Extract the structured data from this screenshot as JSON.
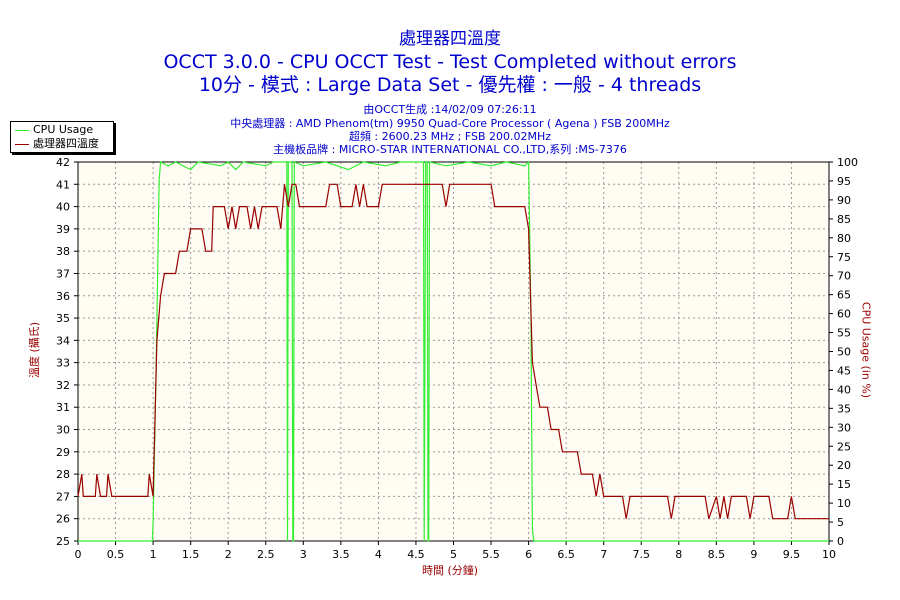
{
  "chart_data": {
    "type": "line",
    "title": "處理器四溫度",
    "subtitle_1": "OCCT 3.0.0 - CPU OCCT Test - Test Completed without errors",
    "subtitle_2": "10分 - 模式 : Large Data Set - 優先權 : 一般 - 4 threads",
    "info_lines": [
      "由OCCT生成 :14/02/09 07:26:11",
      "中央處理器 : AMD Phenom(tm) 9950 Quad-Core Processor ( Agena ) FSB 200MHz",
      "超頻 : 2600.23 MHz ; FSB 200.02MHz",
      "主機板品牌 : MICRO-STAR INTERNATIONAL CO.,LTD,系列 :MS-7376"
    ],
    "xlabel": "時間 (分鐘)",
    "ylabel_left": "溫度 (攝氏)",
    "ylabel_right": "CPU Usage (in %)",
    "xlim": [
      0,
      10
    ],
    "ylim_left": [
      25,
      42
    ],
    "ylim_right": [
      0,
      100
    ],
    "x_ticks": [
      "0",
      "0.5",
      "1",
      "1.5",
      "2",
      "2.5",
      "3",
      "3.5",
      "4",
      "4.5",
      "5",
      "5.5",
      "6",
      "6.5",
      "7",
      "7.5",
      "8",
      "8.5",
      "9",
      "9.5",
      "10"
    ],
    "y_ticks_left": [
      "25",
      "26",
      "27",
      "28",
      "29",
      "30",
      "31",
      "32",
      "33",
      "34",
      "35",
      "36",
      "37",
      "38",
      "39",
      "40",
      "41",
      "42"
    ],
    "y_ticks_right": [
      "0",
      "5",
      "10",
      "15",
      "20",
      "25",
      "30",
      "35",
      "40",
      "45",
      "50",
      "55",
      "60",
      "65",
      "70",
      "75",
      "80",
      "85",
      "90",
      "95",
      "100"
    ],
    "grid": true,
    "legend_position": "top-left",
    "series": [
      {
        "name": "CPU Usage",
        "color": "#33ee33",
        "axis": "right",
        "points": [
          [
            0,
            0
          ],
          [
            0.99,
            0
          ],
          [
            1.0,
            5
          ],
          [
            1.04,
            45
          ],
          [
            1.08,
            95
          ],
          [
            1.1,
            100
          ],
          [
            1.2,
            99
          ],
          [
            1.3,
            100
          ],
          [
            1.5,
            98
          ],
          [
            1.6,
            100
          ],
          [
            1.9,
            99
          ],
          [
            2.0,
            100
          ],
          [
            2.1,
            98
          ],
          [
            2.2,
            100
          ],
          [
            2.5,
            99
          ],
          [
            2.6,
            100
          ],
          [
            2.78,
            100
          ],
          [
            2.79,
            0
          ],
          [
            2.8,
            100
          ],
          [
            2.85,
            100
          ],
          [
            2.86,
            0
          ],
          [
            2.87,
            0
          ],
          [
            2.88,
            100
          ],
          [
            3.0,
            99
          ],
          [
            3.3,
            100
          ],
          [
            3.6,
            98
          ],
          [
            3.8,
            100
          ],
          [
            4.1,
            99
          ],
          [
            4.3,
            100
          ],
          [
            4.5,
            100
          ],
          [
            4.6,
            100
          ],
          [
            4.61,
            0
          ],
          [
            4.63,
            100
          ],
          [
            4.65,
            100
          ],
          [
            4.66,
            0
          ],
          [
            4.67,
            0
          ],
          [
            4.68,
            100
          ],
          [
            4.9,
            99
          ],
          [
            5.2,
            100
          ],
          [
            5.5,
            99
          ],
          [
            5.7,
            100
          ],
          [
            5.95,
            99
          ],
          [
            6.0,
            100
          ],
          [
            6.03,
            60
          ],
          [
            6.05,
            3
          ],
          [
            6.07,
            0
          ],
          [
            10,
            0
          ]
        ]
      },
      {
        "name": "處理器四溫度",
        "color": "#990000",
        "axis": "left",
        "points": [
          [
            0,
            27
          ],
          [
            0.05,
            28
          ],
          [
            0.07,
            27
          ],
          [
            0.23,
            27
          ],
          [
            0.25,
            28
          ],
          [
            0.3,
            27
          ],
          [
            0.38,
            27
          ],
          [
            0.4,
            28
          ],
          [
            0.45,
            27
          ],
          [
            0.93,
            27
          ],
          [
            0.95,
            28
          ],
          [
            1.0,
            27
          ],
          [
            1.05,
            34
          ],
          [
            1.1,
            36
          ],
          [
            1.15,
            37
          ],
          [
            1.3,
            37
          ],
          [
            1.35,
            38
          ],
          [
            1.45,
            38
          ],
          [
            1.5,
            39
          ],
          [
            1.65,
            39
          ],
          [
            1.7,
            38
          ],
          [
            1.78,
            38
          ],
          [
            1.8,
            40
          ],
          [
            1.95,
            40
          ],
          [
            2.0,
            39
          ],
          [
            2.05,
            40
          ],
          [
            2.1,
            39
          ],
          [
            2.15,
            40
          ],
          [
            2.25,
            40
          ],
          [
            2.3,
            39
          ],
          [
            2.35,
            40
          ],
          [
            2.4,
            39
          ],
          [
            2.45,
            40
          ],
          [
            2.65,
            40
          ],
          [
            2.7,
            39
          ],
          [
            2.75,
            41
          ],
          [
            2.8,
            40
          ],
          [
            2.85,
            41
          ],
          [
            2.9,
            41
          ],
          [
            2.95,
            40
          ],
          [
            3.3,
            40
          ],
          [
            3.35,
            41
          ],
          [
            3.45,
            41
          ],
          [
            3.5,
            40
          ],
          [
            3.65,
            40
          ],
          [
            3.7,
            41
          ],
          [
            3.75,
            40
          ],
          [
            3.8,
            41
          ],
          [
            3.85,
            40
          ],
          [
            4.0,
            40
          ],
          [
            4.05,
            41
          ],
          [
            4.85,
            41
          ],
          [
            4.9,
            40
          ],
          [
            4.95,
            41
          ],
          [
            5.5,
            41
          ],
          [
            5.55,
            40
          ],
          [
            5.95,
            40
          ],
          [
            6.0,
            39
          ],
          [
            6.05,
            33
          ],
          [
            6.1,
            32
          ],
          [
            6.15,
            31
          ],
          [
            6.25,
            31
          ],
          [
            6.3,
            30
          ],
          [
            6.4,
            30
          ],
          [
            6.45,
            29
          ],
          [
            6.65,
            29
          ],
          [
            6.7,
            28
          ],
          [
            6.85,
            28
          ],
          [
            6.9,
            27
          ],
          [
            6.95,
            28
          ],
          [
            7.0,
            27
          ],
          [
            7.25,
            27
          ],
          [
            7.3,
            26
          ],
          [
            7.35,
            27
          ],
          [
            7.85,
            27
          ],
          [
            7.9,
            26
          ],
          [
            7.95,
            27
          ],
          [
            8.35,
            27
          ],
          [
            8.4,
            26
          ],
          [
            8.5,
            27
          ],
          [
            8.55,
            26
          ],
          [
            8.6,
            27
          ],
          [
            8.65,
            26
          ],
          [
            8.7,
            27
          ],
          [
            8.9,
            27
          ],
          [
            8.95,
            26
          ],
          [
            9.0,
            27
          ],
          [
            9.2,
            27
          ],
          [
            9.25,
            26
          ],
          [
            9.45,
            26
          ],
          [
            9.5,
            27
          ],
          [
            9.55,
            26
          ],
          [
            10,
            26
          ]
        ]
      }
    ]
  }
}
